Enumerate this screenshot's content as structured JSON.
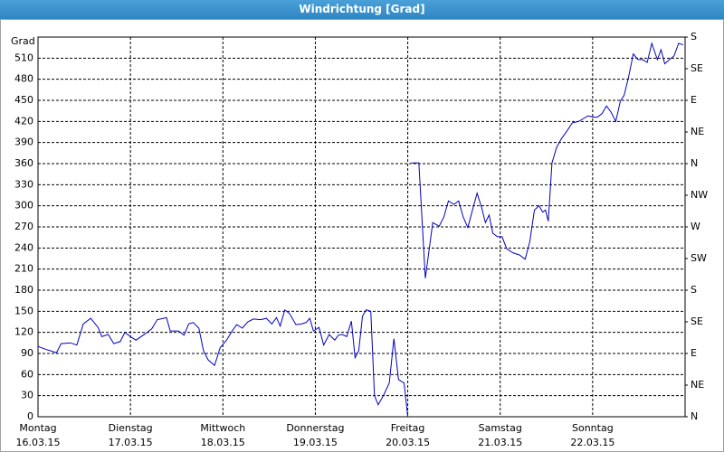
{
  "chart_data": {
    "type": "line",
    "title": "Windrichtung [Grad]",
    "y_label": "Grad",
    "xlim": [
      0,
      7
    ],
    "ylim": [
      0,
      540
    ],
    "y2lim": [
      0,
      540
    ],
    "xticks": [
      {
        "value": 0,
        "label": "Montag",
        "date": "16.03.15"
      },
      {
        "value": 1,
        "label": "Dienstag",
        "date": "17.03.15"
      },
      {
        "value": 2,
        "label": "Mittwoch",
        "date": "18.03.15"
      },
      {
        "value": 3,
        "label": "Donnerstag",
        "date": "19.03.15"
      },
      {
        "value": 4,
        "label": "Freitag",
        "date": "20.03.15"
      },
      {
        "value": 5,
        "label": "Samstag",
        "date": "21.03.15"
      },
      {
        "value": 6,
        "label": "Sonntag",
        "date": "22.03.15"
      }
    ],
    "yticks": [
      0,
      30,
      60,
      90,
      120,
      150,
      180,
      210,
      240,
      270,
      300,
      330,
      360,
      390,
      420,
      450,
      480,
      510
    ],
    "y2ticks": [
      {
        "value": 0,
        "label": "N"
      },
      {
        "value": 45,
        "label": "NE"
      },
      {
        "value": 90,
        "label": "E"
      },
      {
        "value": 135,
        "label": "SE"
      },
      {
        "value": 180,
        "label": "S"
      },
      {
        "value": 225,
        "label": "SW"
      },
      {
        "value": 270,
        "label": "W"
      },
      {
        "value": 315,
        "label": "NW"
      },
      {
        "value": 360,
        "label": "N"
      },
      {
        "value": 405,
        "label": "NE"
      },
      {
        "value": 450,
        "label": "E"
      },
      {
        "value": 495,
        "label": "SE"
      },
      {
        "value": 540,
        "label": "S"
      }
    ],
    "grid": true,
    "x": [
      0,
      0.08,
      0.13,
      0.2,
      0.25,
      0.35,
      0.42,
      0.49,
      0.57,
      0.65,
      0.69,
      0.76,
      0.82,
      0.89,
      0.94,
      1.01,
      1.06,
      1.16,
      1.23,
      1.29,
      1.39,
      1.43,
      1.52,
      1.58,
      1.63,
      1.68,
      1.74,
      1.79,
      1.84,
      1.91,
      1.97,
      2.04,
      2.1,
      2.15,
      2.21,
      2.27,
      2.33,
      2.41,
      2.47,
      2.53,
      2.58,
      2.62,
      2.67,
      2.72,
      2.79,
      2.85,
      2.9,
      2.94,
      2.98,
      3.04,
      3.09,
      3.15,
      3.21,
      3.25,
      3.29,
      3.34,
      3.39,
      3.43,
      3.47,
      3.51,
      3.55,
      3.6,
      3.64,
      3.68,
      3.74,
      3.8,
      3.85,
      3.9,
      3.96,
      4.0,
      4.02,
      4.04,
      4.12,
      4.19,
      4.27,
      4.34,
      4.39,
      4.44,
      4.5,
      4.55,
      4.6,
      4.65,
      4.7,
      4.75,
      4.8,
      4.84,
      4.88,
      4.92,
      4.97,
      5.02,
      5.07,
      5.14,
      5.21,
      5.27,
      5.32,
      5.37,
      5.42,
      5.46,
      5.49,
      5.52,
      5.56,
      5.61,
      5.66,
      5.73,
      5.78,
      5.85,
      5.95,
      6.01,
      6.05,
      6.1,
      6.15,
      6.2,
      6.25,
      6.3,
      6.34,
      6.39,
      6.44,
      6.49,
      6.54,
      6.59,
      6.64,
      6.7,
      6.74,
      6.78,
      6.83,
      6.88,
      6.93,
      6.98
    ],
    "series": [
      {
        "color": "#0000c0",
        "values": [
          100,
          96,
          94,
          91,
          104,
          105,
          102,
          132,
          140,
          127,
          114,
          117,
          104,
          107,
          120,
          113,
          109,
          118,
          125,
          138,
          141,
          122,
          122,
          116,
          132,
          134,
          126,
          94,
          81,
          73,
          98,
          109,
          122,
          131,
          126,
          135,
          139,
          138,
          140,
          132,
          141,
          129,
          152,
          147,
          131,
          132,
          134,
          140,
          122,
          127,
          102,
          117,
          109,
          116,
          117,
          114,
          136,
          84,
          94,
          143,
          152,
          150,
          30,
          17,
          31,
          48,
          111,
          53,
          48,
          0,
          null,
          361,
          361,
          197,
          276,
          271,
          284,
          307,
          302,
          307,
          284,
          269,
          294,
          318,
          297,
          276,
          287,
          261,
          256,
          256,
          239,
          233,
          230,
          224,
          249,
          294,
          300,
          291,
          294,
          278,
          361,
          383,
          395,
          408,
          418,
          420,
          428,
          426,
          426,
          431,
          442,
          433,
          420,
          449,
          457,
          484,
          516,
          508,
          508,
          504,
          531,
          508,
          522,
          502,
          508,
          513,
          531,
          529
        ]
      }
    ]
  }
}
